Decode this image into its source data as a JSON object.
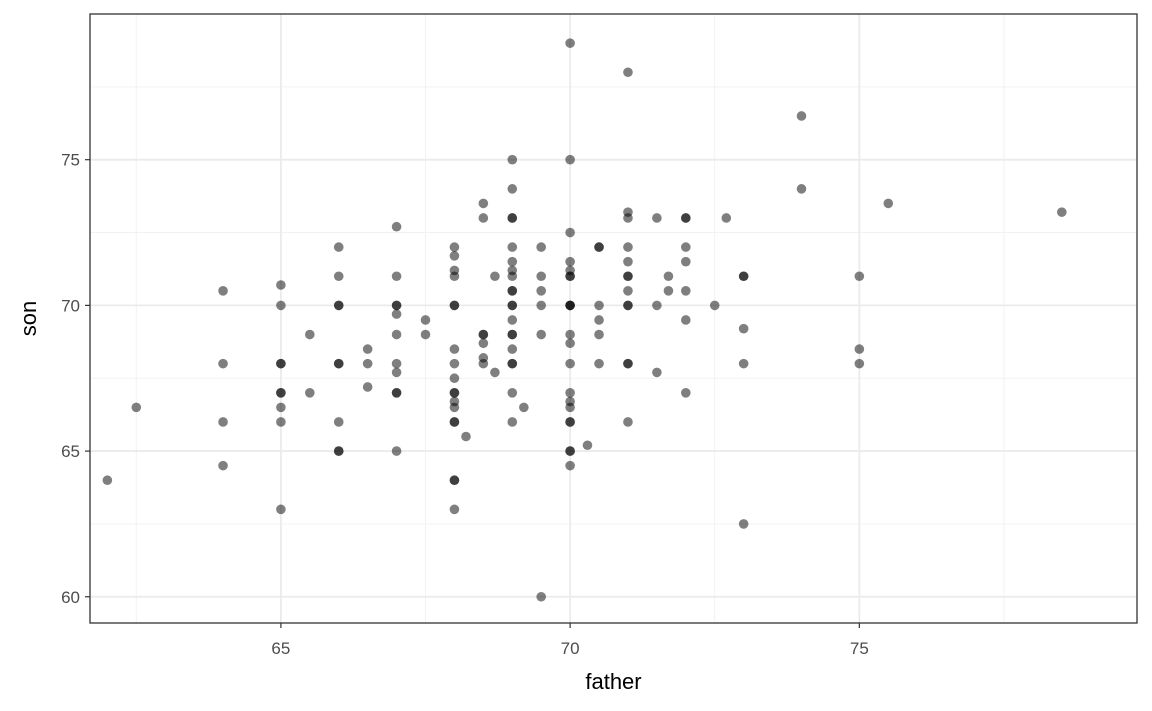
{
  "chart_data": {
    "type": "scatter",
    "xlabel": "father",
    "ylabel": "son",
    "xlim": [
      61.7,
      79.8
    ],
    "ylim": [
      59.1,
      80.0
    ],
    "xticks": [
      65,
      70,
      75
    ],
    "yticks": [
      60,
      65,
      70,
      75
    ],
    "x_minor": [
      62.5,
      67.5,
      72.5,
      77.5
    ],
    "y_minor": [
      62.5,
      67.5,
      72.5,
      77.5
    ],
    "grid": true,
    "point_color": "#000000",
    "point_alpha": 0.5,
    "points": [
      [
        62,
        64
      ],
      [
        62.5,
        66.5
      ],
      [
        64,
        70.5
      ],
      [
        64,
        68
      ],
      [
        64,
        66
      ],
      [
        64,
        64.5
      ],
      [
        65,
        70.7
      ],
      [
        65,
        70
      ],
      [
        65,
        68
      ],
      [
        65,
        68
      ],
      [
        65,
        67
      ],
      [
        65,
        67
      ],
      [
        65,
        66.5
      ],
      [
        65,
        66
      ],
      [
        65,
        63
      ],
      [
        65.5,
        69
      ],
      [
        65.5,
        67
      ],
      [
        66,
        72
      ],
      [
        66,
        71
      ],
      [
        66,
        70
      ],
      [
        66,
        70
      ],
      [
        66,
        68
      ],
      [
        66,
        68
      ],
      [
        66,
        66
      ],
      [
        66,
        65
      ],
      [
        66,
        65
      ],
      [
        66.5,
        68.5
      ],
      [
        66.5,
        68
      ],
      [
        66.5,
        67.2
      ],
      [
        67,
        72.7
      ],
      [
        67,
        71
      ],
      [
        67,
        70
      ],
      [
        67,
        70
      ],
      [
        67,
        69.7
      ],
      [
        67,
        69
      ],
      [
        67,
        68
      ],
      [
        67,
        67.7
      ],
      [
        67,
        67
      ],
      [
        67,
        67
      ],
      [
        67,
        65
      ],
      [
        67.5,
        69.5
      ],
      [
        67.5,
        69
      ],
      [
        68,
        72
      ],
      [
        68,
        71.7
      ],
      [
        68,
        71.2
      ],
      [
        68,
        71
      ],
      [
        68,
        70
      ],
      [
        68,
        70
      ],
      [
        68,
        68.5
      ],
      [
        68,
        68
      ],
      [
        68,
        67.5
      ],
      [
        68,
        67
      ],
      [
        68,
        67
      ],
      [
        68,
        66.7
      ],
      [
        68,
        66.5
      ],
      [
        68,
        66
      ],
      [
        68,
        66
      ],
      [
        68,
        64
      ],
      [
        68,
        64
      ],
      [
        68,
        63
      ],
      [
        68.2,
        65.5
      ],
      [
        68.5,
        73.5
      ],
      [
        68.5,
        73
      ],
      [
        68.5,
        69
      ],
      [
        68.5,
        69
      ],
      [
        68.5,
        68.7
      ],
      [
        68.5,
        68.2
      ],
      [
        68.5,
        68
      ],
      [
        68.7,
        71
      ],
      [
        68.7,
        67.7
      ],
      [
        69,
        75
      ],
      [
        69,
        74
      ],
      [
        69,
        73
      ],
      [
        69,
        73
      ],
      [
        69,
        72
      ],
      [
        69,
        71.5
      ],
      [
        69,
        71.2
      ],
      [
        69,
        71
      ],
      [
        69,
        70.5
      ],
      [
        69,
        70.5
      ],
      [
        69,
        70
      ],
      [
        69,
        70
      ],
      [
        69,
        69.5
      ],
      [
        69,
        69
      ],
      [
        69,
        69
      ],
      [
        69,
        68.5
      ],
      [
        69,
        68
      ],
      [
        69,
        68
      ],
      [
        69,
        67
      ],
      [
        69,
        66
      ],
      [
        69.2,
        66.5
      ],
      [
        69.5,
        72
      ],
      [
        69.5,
        71
      ],
      [
        69.5,
        70.5
      ],
      [
        69.5,
        70
      ],
      [
        69.5,
        69
      ],
      [
        69.5,
        60
      ],
      [
        70,
        79
      ],
      [
        70,
        75
      ],
      [
        70,
        72.5
      ],
      [
        70,
        71.5
      ],
      [
        70,
        71.2
      ],
      [
        70,
        71
      ],
      [
        70,
        71
      ],
      [
        70,
        70
      ],
      [
        70,
        70
      ],
      [
        70,
        70
      ],
      [
        70,
        69
      ],
      [
        70,
        68.7
      ],
      [
        70,
        68
      ],
      [
        70,
        67
      ],
      [
        70,
        66.7
      ],
      [
        70,
        66.5
      ],
      [
        70,
        66
      ],
      [
        70,
        66
      ],
      [
        70,
        65
      ],
      [
        70,
        65
      ],
      [
        70,
        64.5
      ],
      [
        70.3,
        65.2
      ],
      [
        70.5,
        72
      ],
      [
        70.5,
        72
      ],
      [
        70.5,
        70
      ],
      [
        70.5,
        69.5
      ],
      [
        70.5,
        69
      ],
      [
        70.5,
        68
      ],
      [
        71,
        78
      ],
      [
        71,
        73.2
      ],
      [
        71,
        73
      ],
      [
        71,
        72
      ],
      [
        71,
        71.5
      ],
      [
        71,
        71
      ],
      [
        71,
        71
      ],
      [
        71,
        70.5
      ],
      [
        71,
        70
      ],
      [
        71,
        70
      ],
      [
        71,
        68
      ],
      [
        71,
        68
      ],
      [
        71,
        66
      ],
      [
        71.5,
        73
      ],
      [
        71.5,
        70
      ],
      [
        71.5,
        67.7
      ],
      [
        71.7,
        71
      ],
      [
        71.7,
        70.5
      ],
      [
        72,
        73
      ],
      [
        72,
        73
      ],
      [
        72,
        72
      ],
      [
        72,
        71.5
      ],
      [
        72,
        70.5
      ],
      [
        72,
        69.5
      ],
      [
        72,
        67
      ],
      [
        72.5,
        70
      ],
      [
        72.7,
        73
      ],
      [
        73,
        71
      ],
      [
        73,
        71
      ],
      [
        73,
        69.2
      ],
      [
        73,
        68
      ],
      [
        73,
        62.5
      ],
      [
        74,
        76.5
      ],
      [
        74,
        74
      ],
      [
        75,
        71
      ],
      [
        75,
        68.5
      ],
      [
        75,
        68
      ],
      [
        75.5,
        73.5
      ],
      [
        78.5,
        73.2
      ]
    ]
  }
}
